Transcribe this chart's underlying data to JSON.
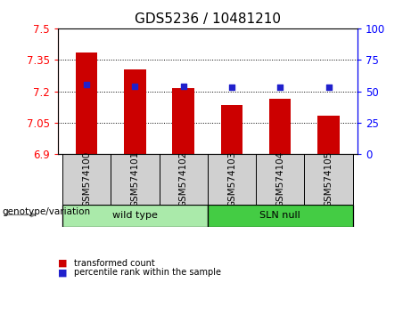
{
  "title": "GDS5236 / 10481210",
  "samples": [
    "GSM574100",
    "GSM574101",
    "GSM574102",
    "GSM574103",
    "GSM574104",
    "GSM574105"
  ],
  "bar_values": [
    7.385,
    7.305,
    7.215,
    7.135,
    7.165,
    7.085
  ],
  "percentile_values": [
    55,
    54,
    54,
    53,
    53,
    53
  ],
  "ylim_left": [
    6.9,
    7.5
  ],
  "ylim_right": [
    0,
    100
  ],
  "yticks_left": [
    6.9,
    7.05,
    7.2,
    7.35,
    7.5
  ],
  "ytick_labels_left": [
    "6.9",
    "7.05",
    "7.2",
    "7.35",
    "7.5"
  ],
  "yticks_right": [
    0,
    25,
    50,
    75,
    100
  ],
  "ytick_labels_right": [
    "0",
    "25",
    "50",
    "75",
    "100"
  ],
  "bar_color": "#cc0000",
  "dot_color": "#2020cc",
  "bar_base": 6.9,
  "groups": [
    {
      "label": "wild type",
      "indices": [
        0,
        1,
        2
      ],
      "color": "#aaeaaa"
    },
    {
      "label": "SLN null",
      "indices": [
        3,
        4,
        5
      ],
      "color": "#44cc44"
    }
  ],
  "group_label": "genotype/variation",
  "legend_items": [
    {
      "label": "transformed count",
      "color": "#cc0000"
    },
    {
      "label": "percentile rank within the sample",
      "color": "#2020cc"
    }
  ],
  "bg_plot": "#ffffff",
  "bg_sample": "#d0d0d0",
  "title_fontsize": 11,
  "tick_fontsize": 8.5,
  "label_fontsize": 7.5
}
